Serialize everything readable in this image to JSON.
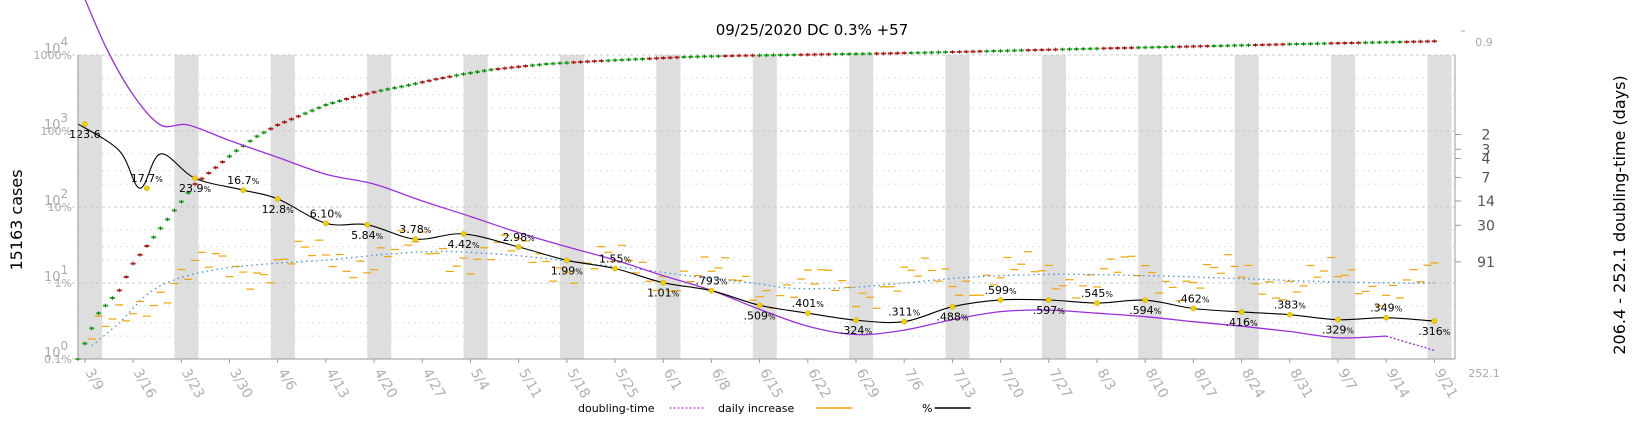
{
  "chart_data": {
    "type": "line",
    "title": "09/25/2020 DC 0.3% +57",
    "ylabel_left": "15163 cases",
    "ylabel_right": "206.4 - 252.1 doubling-time (days)",
    "left_axis": {
      "scale": "log",
      "cases_ticks": [
        {
          "base": "10",
          "exp": "0",
          "value": 1
        },
        {
          "base": "10",
          "exp": "1",
          "value": 10
        },
        {
          "base": "10",
          "exp": "2",
          "value": 100
        },
        {
          "base": "10",
          "exp": "3",
          "value": 1000
        },
        {
          "base": "10",
          "exp": "4",
          "value": 10000
        }
      ],
      "percent_ticks": [
        "0.1%",
        "1%",
        "10%",
        "100%",
        "1000%"
      ]
    },
    "right_axis": {
      "top_label": "0.9",
      "bottom_label": "252.1",
      "ticks": [
        "2",
        "3",
        "4",
        "7",
        "14",
        "30",
        "91"
      ]
    },
    "x_ticks": [
      "3/9",
      "3/16",
      "3/23",
      "3/30",
      "4/6",
      "4/13",
      "4/20",
      "4/27",
      "5/4",
      "5/11",
      "5/18",
      "5/25",
      "6/1",
      "6/8",
      "6/15",
      "6/22",
      "6/29",
      "7/6",
      "7/13",
      "7/20",
      "7/27",
      "8/3",
      "8/10",
      "8/17",
      "8/24",
      "8/31",
      "9/7",
      "9/14",
      "9/21"
    ],
    "percent_annotations": [
      {
        "date": "3/10",
        "label": "123.6",
        "suffix": "",
        "percent": 123.6
      },
      {
        "date": "3/19",
        "label": "17.7",
        "suffix": "%",
        "percent": 17.7
      },
      {
        "date": "3/26",
        "label": "23.9",
        "suffix": "%",
        "percent": 23.9
      },
      {
        "date": "4/2",
        "label": "16.7",
        "suffix": "%",
        "percent": 16.7
      },
      {
        "date": "4/7",
        "label": "12.8",
        "suffix": "%",
        "percent": 12.8
      },
      {
        "date": "4/14",
        "label": "6.10",
        "suffix": "%",
        "percent": 6.1
      },
      {
        "date": "4/20",
        "label": "5.84",
        "suffix": "%",
        "percent": 5.84
      },
      {
        "date": "4/27",
        "label": "3.78",
        "suffix": "%",
        "percent": 3.78
      },
      {
        "date": "5/4",
        "label": "4.42",
        "suffix": "%",
        "percent": 4.42
      },
      {
        "date": "5/12",
        "label": "2.98",
        "suffix": "%",
        "percent": 2.98
      },
      {
        "date": "5/19",
        "label": "1.99",
        "suffix": "%",
        "percent": 1.99
      },
      {
        "date": "5/26",
        "label": "1.55",
        "suffix": "%",
        "percent": 1.55
      },
      {
        "date": "6/2",
        "label": "1.01",
        "suffix": "%",
        "percent": 1.01
      },
      {
        "date": "6/9",
        "label": ".793",
        "suffix": "%",
        "percent": 0.793
      },
      {
        "date": "6/16",
        "label": ".509",
        "suffix": "%",
        "percent": 0.509
      },
      {
        "date": "6/23",
        "label": ".401",
        "suffix": "%",
        "percent": 0.401
      },
      {
        "date": "6/30",
        "label": ".324",
        "suffix": "%",
        "percent": 0.324
      },
      {
        "date": "7/7",
        "label": ".311",
        "suffix": "%",
        "percent": 0.311
      },
      {
        "date": "7/14",
        "label": ".488",
        "suffix": "%",
        "percent": 0.488
      },
      {
        "date": "7/21",
        "label": ".599",
        "suffix": "%",
        "percent": 0.599
      },
      {
        "date": "7/28",
        "label": ".597",
        "suffix": "%",
        "percent": 0.597
      },
      {
        "date": "8/4",
        "label": ".545",
        "suffix": "%",
        "percent": 0.545
      },
      {
        "date": "8/11",
        "label": ".594",
        "suffix": "%",
        "percent": 0.594
      },
      {
        "date": "8/18",
        "label": ".462",
        "suffix": "%",
        "percent": 0.462
      },
      {
        "date": "8/25",
        "label": ".416",
        "suffix": "%",
        "percent": 0.416
      },
      {
        "date": "9/1",
        "label": ".383",
        "suffix": "%",
        "percent": 0.383
      },
      {
        "date": "9/8",
        "label": ".329",
        "suffix": "%",
        "percent": 0.329
      },
      {
        "date": "9/15",
        "label": ".349",
        "suffix": "%",
        "percent": 0.349
      },
      {
        "date": "9/22",
        "label": ".316",
        "suffix": "%",
        "percent": 0.316
      }
    ],
    "series": [
      {
        "name": "doubling-time",
        "style": "dotted",
        "color": "#9b30d9"
      },
      {
        "name": "daily increase",
        "style": "dash",
        "color": "#f0a500"
      },
      {
        "name": "%",
        "style": "solid",
        "color": "#000000"
      }
    ],
    "curves": {
      "percent_line": [
        [
          0,
          124
        ],
        [
          6,
          55
        ],
        [
          9,
          17.7
        ],
        [
          12,
          50
        ],
        [
          17,
          23.9
        ],
        [
          24,
          16.7
        ],
        [
          29,
          12.8
        ],
        [
          36,
          6.1
        ],
        [
          42,
          5.84
        ],
        [
          49,
          3.78
        ],
        [
          56,
          4.42
        ],
        [
          64,
          2.98
        ],
        [
          71,
          1.99
        ],
        [
          78,
          1.55
        ],
        [
          85,
          1.01
        ],
        [
          92,
          0.793
        ],
        [
          99,
          0.509
        ],
        [
          106,
          0.401
        ],
        [
          113,
          0.324
        ],
        [
          120,
          0.311
        ],
        [
          127,
          0.488
        ],
        [
          134,
          0.599
        ],
        [
          141,
          0.597
        ],
        [
          148,
          0.545
        ],
        [
          155,
          0.594
        ],
        [
          162,
          0.462
        ],
        [
          169,
          0.416
        ],
        [
          176,
          0.383
        ],
        [
          183,
          0.329
        ],
        [
          190,
          0.349
        ],
        [
          197,
          0.316
        ]
      ],
      "growth_rate_purple": [
        [
          0,
          9000
        ],
        [
          4,
          1300
        ],
        [
          8,
          300
        ],
        [
          12,
          120
        ],
        [
          16,
          120
        ],
        [
          22,
          75
        ],
        [
          29,
          45
        ],
        [
          36,
          27
        ],
        [
          43,
          20
        ],
        [
          50,
          12
        ],
        [
          57,
          7.5
        ],
        [
          64,
          4.6
        ],
        [
          71,
          3.0
        ],
        [
          78,
          2.0
        ],
        [
          85,
          1.25
        ],
        [
          92,
          0.8
        ],
        [
          99,
          0.45
        ],
        [
          106,
          0.27
        ],
        [
          113,
          0.21
        ],
        [
          120,
          0.24
        ],
        [
          127,
          0.33
        ],
        [
          134,
          0.42
        ],
        [
          141,
          0.44
        ],
        [
          148,
          0.4
        ],
        [
          155,
          0.36
        ],
        [
          162,
          0.31
        ],
        [
          169,
          0.27
        ],
        [
          176,
          0.23
        ],
        [
          183,
          0.19
        ],
        [
          190,
          0.2
        ],
        [
          197,
          0.13
        ]
      ],
      "cases_green": [
        [
          0,
          1
        ],
        [
          1,
          1.6
        ],
        [
          3,
          4
        ],
        [
          6,
          8
        ],
        [
          8,
          18
        ],
        [
          11,
          40
        ],
        [
          14,
          90
        ],
        [
          17,
          200
        ],
        [
          20,
          330
        ],
        [
          23,
          550
        ],
        [
          26,
          850
        ],
        [
          29,
          1200
        ],
        [
          33,
          1700
        ],
        [
          36,
          2200
        ],
        [
          40,
          2800
        ],
        [
          44,
          3400
        ],
        [
          48,
          4000
        ],
        [
          52,
          4800
        ],
        [
          56,
          5600
        ],
        [
          60,
          6400
        ],
        [
          64,
          7000
        ],
        [
          68,
          7600
        ],
        [
          74,
          8200
        ],
        [
          80,
          8700
        ],
        [
          88,
          9400
        ],
        [
          96,
          9800
        ],
        [
          106,
          10100
        ],
        [
          118,
          10500
        ],
        [
          130,
          11100
        ],
        [
          142,
          11800
        ],
        [
          154,
          12500
        ],
        [
          166,
          13200
        ],
        [
          178,
          14000
        ],
        [
          190,
          14700
        ],
        [
          197,
          15163
        ]
      ],
      "dotted_blue": [
        [
          2,
          1.5
        ],
        [
          6,
          3
        ],
        [
          10,
          7
        ],
        [
          14,
          11
        ],
        [
          20,
          15
        ],
        [
          28,
          18
        ],
        [
          36,
          20
        ],
        [
          45,
          24
        ],
        [
          52,
          26
        ],
        [
          58,
          25
        ],
        [
          66,
          22
        ],
        [
          74,
          18
        ],
        [
          82,
          15
        ],
        [
          90,
          12
        ],
        [
          98,
          10
        ],
        [
          104,
          8.5
        ],
        [
          112,
          8.7
        ],
        [
          120,
          10
        ],
        [
          130,
          12
        ],
        [
          142,
          13
        ],
        [
          155,
          12.5
        ],
        [
          168,
          11.5
        ],
        [
          180,
          10.5
        ],
        [
          192,
          10
        ],
        [
          197,
          10
        ]
      ]
    },
    "grid": true,
    "legend_position": "bottom"
  }
}
